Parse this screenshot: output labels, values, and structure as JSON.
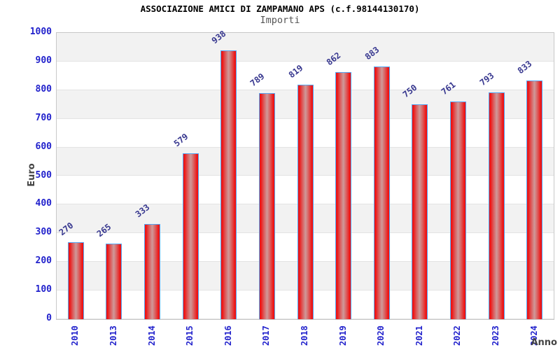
{
  "chart_data": {
    "type": "bar",
    "title": "ASSOCIAZIONE AMICI DI ZAMPAMANO APS (c.f.98144130170)",
    "subtitle": "Importi",
    "xlabel": "Anno",
    "ylabel": "Euro",
    "categories": [
      "2010",
      "2013",
      "2014",
      "2015",
      "2016",
      "2017",
      "2018",
      "2019",
      "2020",
      "2021",
      "2022",
      "2023",
      "2024"
    ],
    "values": [
      270,
      265,
      333,
      579,
      938,
      789,
      819,
      862,
      883,
      750,
      761,
      793,
      833
    ],
    "ylim": [
      0,
      1000
    ],
    "yticks": [
      0,
      100,
      200,
      300,
      400,
      500,
      600,
      700,
      800,
      900,
      1000
    ],
    "grid": "horizontal-bands-alternating",
    "legend_position": "none",
    "value_labels_rotation_deg": -38,
    "xtick_rotation_deg": -90,
    "colors": {
      "bar_fill_edge": "#ee1414",
      "bar_fill_mid": "#da6060",
      "bar_fill_center": "#cf9a9a",
      "bar_border": "#55a6f2",
      "tick_label": "#2222cc",
      "value_label": "#37378f",
      "axis_title": "#444444",
      "title": "#000000",
      "subtitle": "#555555",
      "band_gray": "#f2f2f2",
      "grid_line": "#e3e3e3",
      "plot_border": "#c8c8c8"
    }
  }
}
